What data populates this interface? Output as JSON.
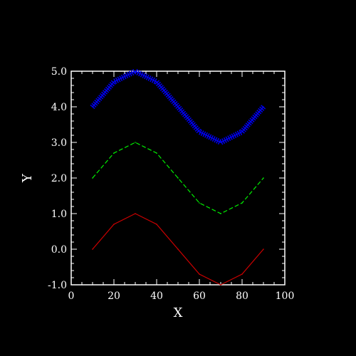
{
  "chart_data": {
    "type": "line",
    "xlabel": "X",
    "ylabel": "Y",
    "xlim": [
      0,
      100
    ],
    "ylim": [
      -1.0,
      5.0
    ],
    "x_ticks": [
      0,
      20,
      40,
      60,
      80,
      100
    ],
    "y_ticks": [
      "-1.0",
      "0.0",
      "1.0",
      "2.0",
      "3.0",
      "4.0",
      "5.0"
    ],
    "x": [
      10,
      20,
      30,
      40,
      50,
      60,
      70,
      80,
      90
    ],
    "series": [
      {
        "color": "#cc0000",
        "style": "solid",
        "values": [
          0.0,
          0.7,
          1.0,
          0.7,
          0.0,
          -0.7,
          -1.0,
          -0.7,
          0.0
        ]
      },
      {
        "color": "#00ee00",
        "style": "dashed",
        "values": [
          2.0,
          2.7,
          3.0,
          2.7,
          2.0,
          1.3,
          1.0,
          1.3,
          2.0
        ]
      },
      {
        "color": "#0000ee",
        "style": "hatched",
        "values": [
          4.0,
          4.7,
          5.0,
          4.7,
          4.0,
          3.3,
          3.0,
          3.3,
          4.0
        ]
      }
    ],
    "background": "#000000",
    "frame_color": "#ffffff",
    "grid": false,
    "legend": "none"
  }
}
